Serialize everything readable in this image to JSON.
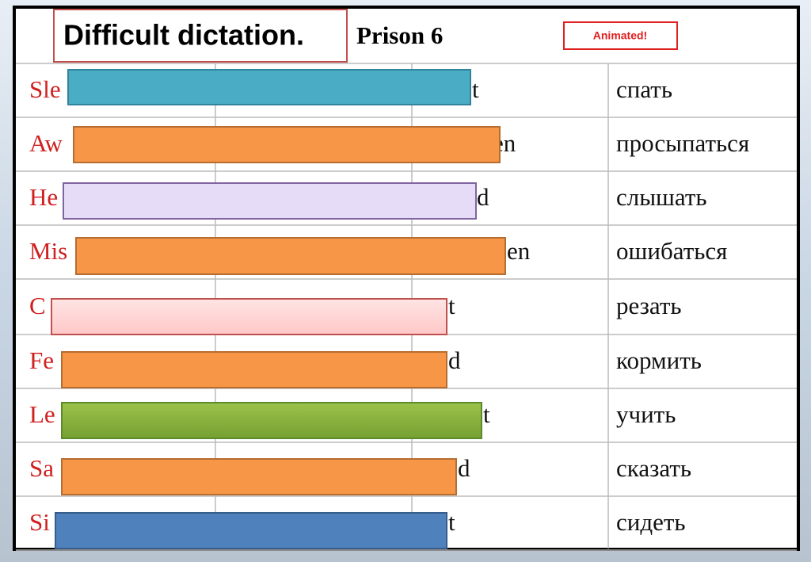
{
  "header": {
    "title": "Difficult dictation.",
    "subtitle": "Prison 6",
    "badge": "Animated!"
  },
  "table": {
    "rows": [
      [
        "Sle",
        "t",
        "спать"
      ],
      [
        "Aw",
        "en",
        "просыпаться"
      ],
      [
        "He",
        "d",
        "слышать"
      ],
      [
        "Mis",
        "en",
        "ошибаться"
      ],
      [
        "C",
        "t",
        "резать"
      ],
      [
        "Fe",
        "d",
        "кормить"
      ],
      [
        "Le",
        "t",
        "учить"
      ],
      [
        "Sa",
        "d",
        "сказать"
      ],
      [
        "Si",
        "t",
        "сидеть"
      ]
    ]
  }
}
